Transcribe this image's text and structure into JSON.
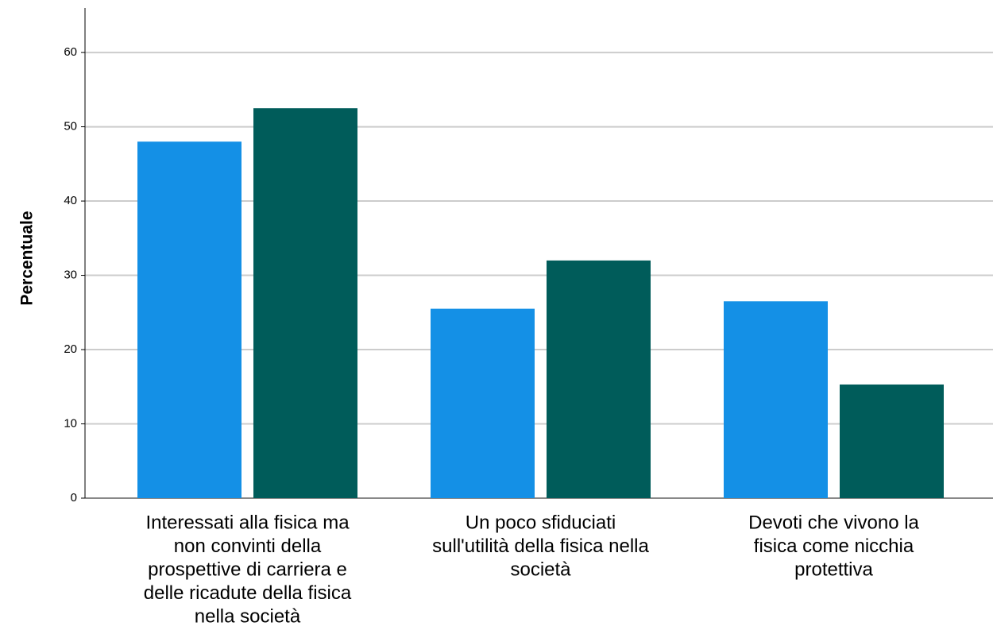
{
  "chart_data": {
    "type": "bar",
    "y_label": "Percentuale",
    "categories": [
      [
        "Interessati alla fisica ma",
        "non convinti della",
        "prospettive di carriera e",
        "delle ricadute della fisica",
        "nella società"
      ],
      [
        "Un poco sfiduciati",
        "sull'utilità della fisica nella",
        "società"
      ],
      [
        "Devoti che vivono la",
        "fisica come nicchia",
        "protettiva"
      ]
    ],
    "series": [
      {
        "color": "#1490e6",
        "values": [
          48,
          25.5,
          26.5
        ]
      },
      {
        "color": "#005c5a",
        "values": [
          52.5,
          32,
          15.3
        ]
      }
    ],
    "ylim": [
      0,
      66
    ],
    "yticks": [
      0,
      10,
      20,
      30,
      40,
      50,
      60
    ],
    "grid": true
  }
}
